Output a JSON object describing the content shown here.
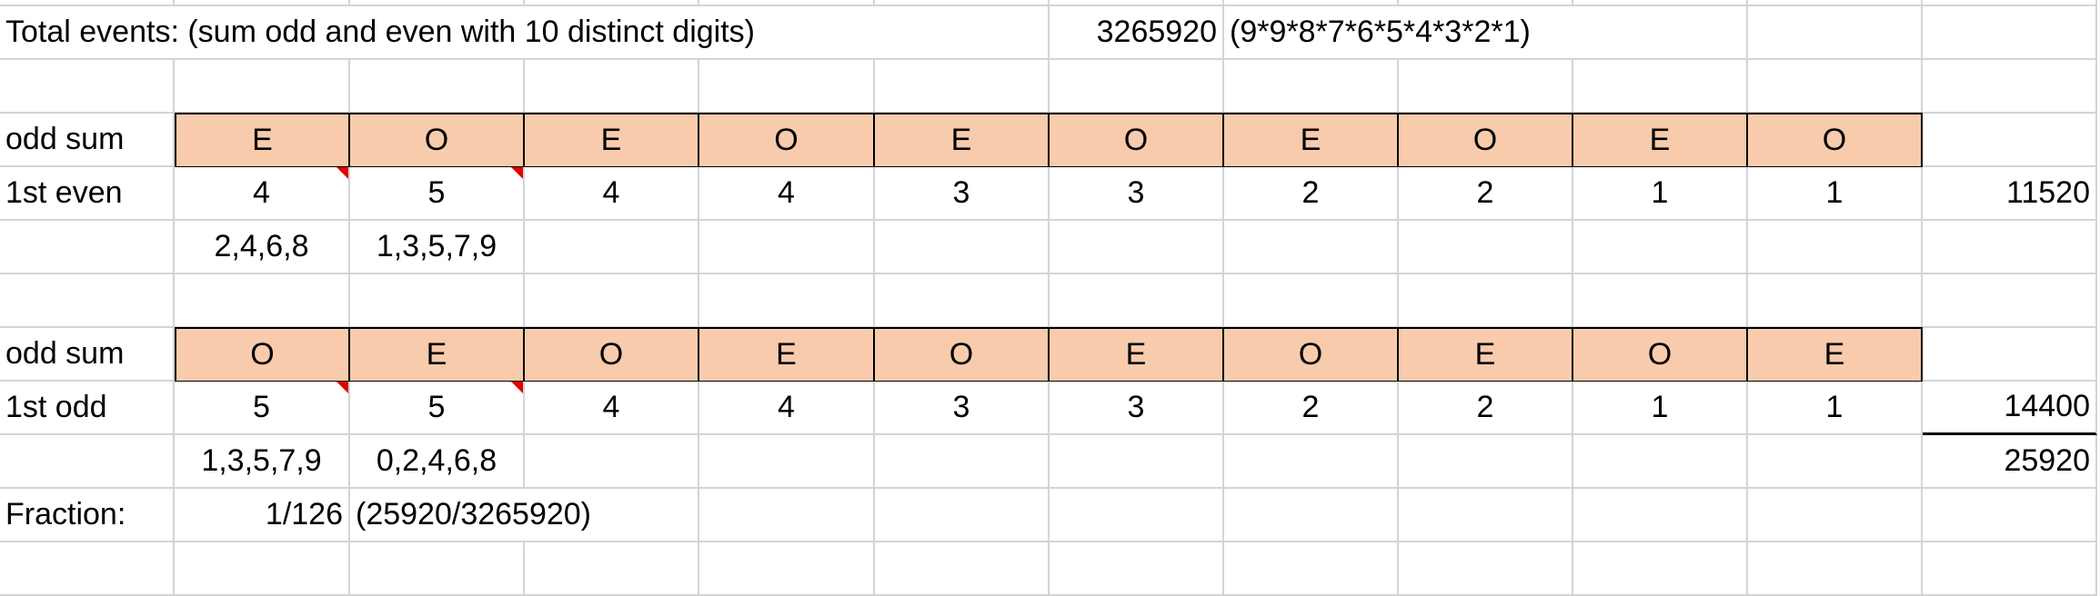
{
  "header": {
    "label": "Total events: (sum odd and even with 10 distinct digits)",
    "total": "3265920",
    "formula": "(9*9*8*7*6*5*4*3*2*1)"
  },
  "block1": {
    "parity_label": "odd sum",
    "parity": [
      "E",
      "O",
      "E",
      "O",
      "E",
      "O",
      "E",
      "O",
      "E",
      "O"
    ],
    "row_label": "1st even",
    "counts": [
      "4",
      "5",
      "4",
      "4",
      "3",
      "3",
      "2",
      "2",
      "1",
      "1"
    ],
    "result": "11520",
    "digits": [
      "2,4,6,8",
      "1,3,5,7,9"
    ]
  },
  "block2": {
    "parity_label": "odd sum",
    "parity": [
      "O",
      "E",
      "O",
      "E",
      "O",
      "E",
      "O",
      "E",
      "O",
      "E"
    ],
    "row_label": "1st odd",
    "counts": [
      "5",
      "5",
      "4",
      "4",
      "3",
      "3",
      "2",
      "2",
      "1",
      "1"
    ],
    "result": "14400",
    "digits": [
      "1,3,5,7,9",
      "0,2,4,6,8"
    ],
    "sum": "25920"
  },
  "fraction": {
    "label": "Fraction:",
    "value": "1/126",
    "formula": "(25920/3265920)"
  },
  "colors": {
    "fill": "#F8CBAD",
    "comment_marker": "#E00000",
    "gridline": "#D4D4D4"
  }
}
